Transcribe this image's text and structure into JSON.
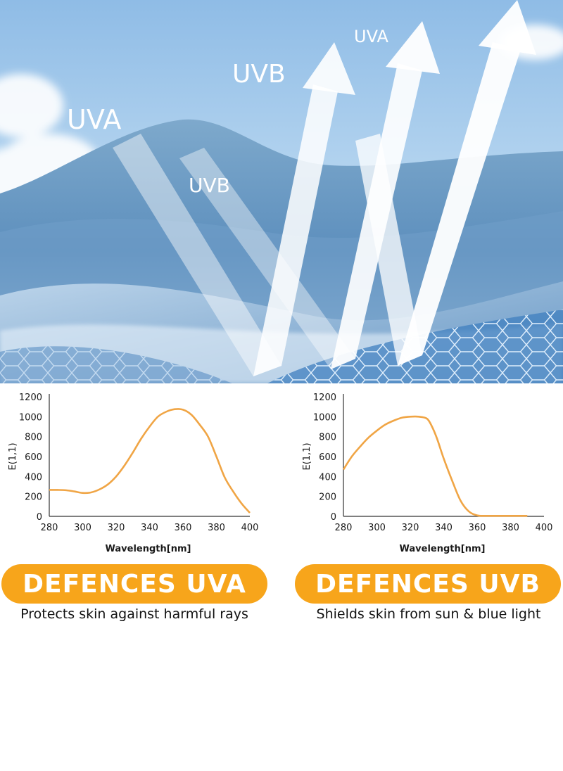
{
  "hero": {
    "labels": [
      {
        "text": "UVA",
        "name": "hero-label-uva-left"
      },
      {
        "text": "UVB",
        "name": "hero-label-uvb-left"
      },
      {
        "text": "UVB",
        "name": "hero-label-uvb-top"
      },
      {
        "text": "UVA",
        "name": "hero-label-uva-top"
      }
    ]
  },
  "colors": {
    "curve": "#f0a545",
    "pill": "#f7a51b",
    "pill_text": "#ffffff",
    "sky": "#a8cdec"
  },
  "chart_data": [
    {
      "type": "line",
      "xlabel": "Wavelength[nm]",
      "ylabel": "E(1,1)",
      "xlim": [
        280,
        400
      ],
      "ylim": [
        0,
        1200
      ],
      "xticks": [
        280,
        300,
        320,
        340,
        360,
        380,
        400
      ],
      "yticks": [
        0,
        200,
        400,
        600,
        800,
        1000,
        1200
      ],
      "grid": false,
      "series": [
        {
          "x": [
            280,
            285,
            290,
            295,
            300,
            305,
            310,
            315,
            320,
            325,
            330,
            335,
            340,
            345,
            350,
            355,
            360,
            365,
            370,
            375,
            380,
            385,
            390,
            395,
            400
          ],
          "y": [
            265,
            265,
            262,
            250,
            235,
            240,
            270,
            320,
            400,
            510,
            640,
            780,
            900,
            1000,
            1050,
            1075,
            1070,
            1020,
            920,
            800,
            600,
            390,
            250,
            130,
            35
          ]
        }
      ]
    },
    {
      "type": "line",
      "xlabel": "Wavelength[nm]",
      "ylabel": "E(1,1)",
      "xlim": [
        280,
        400
      ],
      "ylim": [
        0,
        1200
      ],
      "xticks": [
        280,
        300,
        320,
        340,
        360,
        380,
        400
      ],
      "yticks": [
        0,
        200,
        400,
        600,
        800,
        1000,
        1200
      ],
      "grid": false,
      "series": [
        {
          "x": [
            280,
            285,
            290,
            295,
            300,
            305,
            310,
            315,
            320,
            325,
            330,
            333,
            336,
            340,
            345,
            350,
            355,
            360,
            365,
            370,
            380,
            390
          ],
          "y": [
            470,
            600,
            700,
            790,
            860,
            920,
            960,
            990,
            1000,
            1000,
            980,
            900,
            780,
            580,
            360,
            160,
            50,
            10,
            5,
            5,
            5,
            5
          ]
        }
      ]
    }
  ],
  "badges": [
    {
      "title": "DEFENCES UVA",
      "caption": "Protects skin against harmful rays"
    },
    {
      "title": "DEFENCES UVB",
      "caption": "Shields skin from sun & blue light"
    }
  ]
}
